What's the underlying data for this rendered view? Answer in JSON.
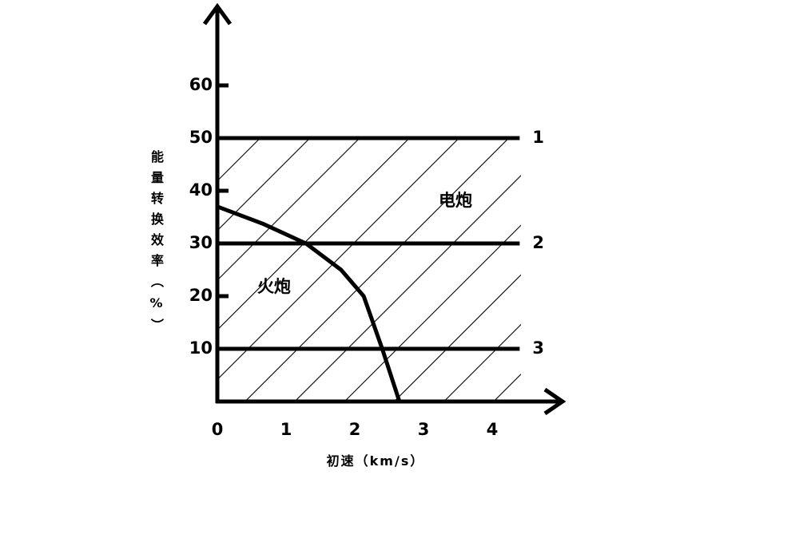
{
  "chart_data": {
    "type": "line",
    "y_label": "能量转换效率（%）",
    "x_label": "初速（km/s）",
    "xlim": [
      0,
      5
    ],
    "xticks": [
      0,
      1,
      2,
      3,
      4
    ],
    "ylim": [
      0,
      75
    ],
    "yticks": [
      10,
      20,
      30,
      40,
      50,
      60
    ],
    "grid": false,
    "annotations": [
      "电炮"
    ],
    "series": [
      {
        "name": "1",
        "color": "#000000",
        "x": [
          0,
          4.4
        ],
        "values": [
          50,
          50
        ]
      },
      {
        "name": "2",
        "color": "#000000",
        "x": [
          0,
          4.4
        ],
        "values": [
          30,
          30
        ]
      },
      {
        "name": "3",
        "color": "#000000",
        "x": [
          0,
          4.4
        ],
        "values": [
          10,
          10
        ]
      },
      {
        "name": "火炮",
        "color": "#000000",
        "x": [
          0,
          0.67,
          1.29,
          1.8,
          2.13,
          2.4,
          2.65
        ],
        "values": [
          37,
          33.7,
          30,
          25,
          20,
          10,
          0
        ]
      }
    ]
  }
}
